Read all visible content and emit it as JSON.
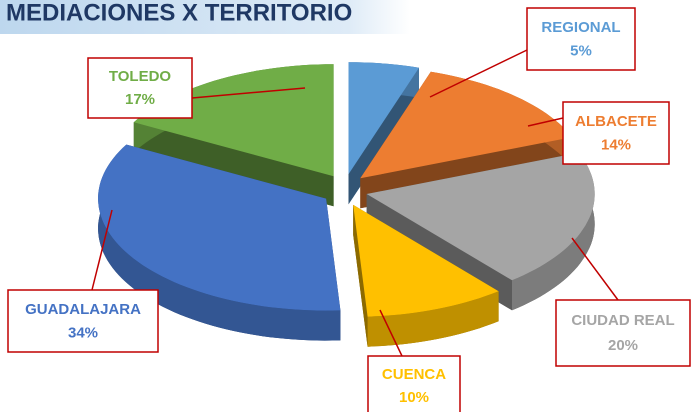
{
  "chart_data": {
    "type": "pie",
    "title": "MEDIACIONES X TERRITORIO",
    "categories": [
      "REGIONAL",
      "ALBACETE",
      "CIUDAD REAL",
      "CUENCA",
      "GUADALAJARA",
      "TOLEDO"
    ],
    "values": [
      5,
      14,
      20,
      10,
      34,
      17
    ],
    "value_labels": [
      "5%",
      "14%",
      "20%",
      "10%",
      "34%",
      "17%"
    ],
    "colors": [
      "#5b9bd5",
      "#ed7d31",
      "#a5a5a5",
      "#ffc000",
      "#4472c4",
      "#70ad47"
    ]
  }
}
